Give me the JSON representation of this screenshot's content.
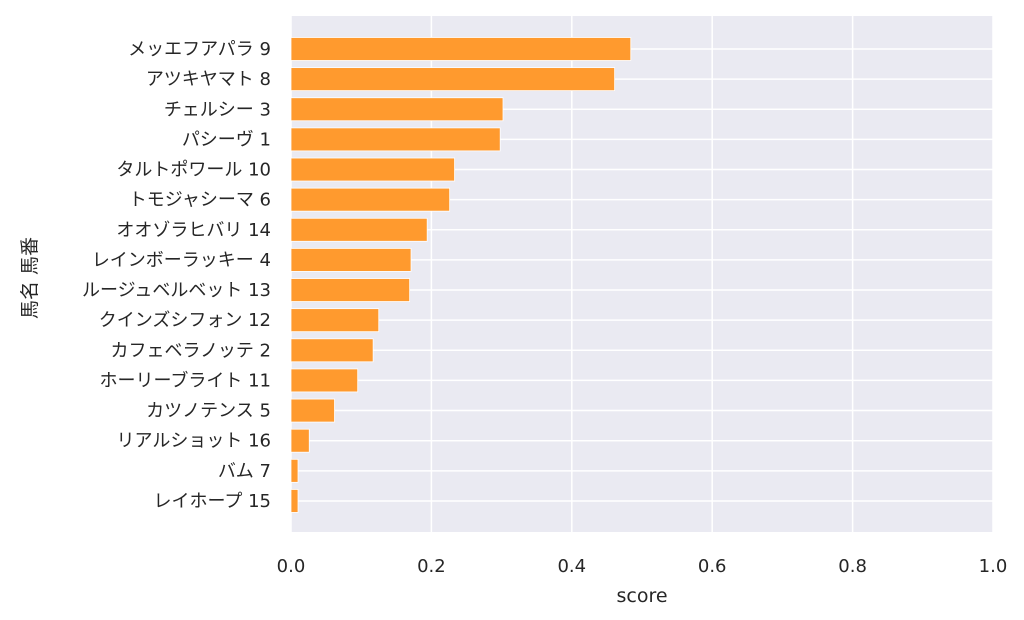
{
  "chart_data": {
    "type": "bar",
    "orientation": "horizontal",
    "xlabel": "score",
    "ylabel": "馬名 馬番",
    "xlim": [
      0.0,
      1.0
    ],
    "xticks": [
      "0.0",
      "0.2",
      "0.4",
      "0.6",
      "0.8",
      "1.0"
    ],
    "grid": true,
    "categories": [
      "メッエフアパラ 9",
      "アツキヤマト 8",
      "チェルシー 3",
      "パシーヴ 1",
      "タルトポワール 10",
      "トモジャシーマ 6",
      "オオゾラヒバリ 14",
      "レインボーラッキー 4",
      "ルージュベルベット 13",
      "クインズシフォン 12",
      "カフェベラノッテ 2",
      "ホーリーブライト 11",
      "カツノテンス 5",
      "リアルショット 16",
      "バム 7",
      "レイホープ 15"
    ],
    "values": [
      0.484,
      0.461,
      0.302,
      0.298,
      0.233,
      0.226,
      0.194,
      0.171,
      0.169,
      0.125,
      0.117,
      0.095,
      0.062,
      0.026,
      0.01,
      0.01
    ],
    "bar_color": "#ff9a2e",
    "background_color": "#eaeaf2"
  }
}
